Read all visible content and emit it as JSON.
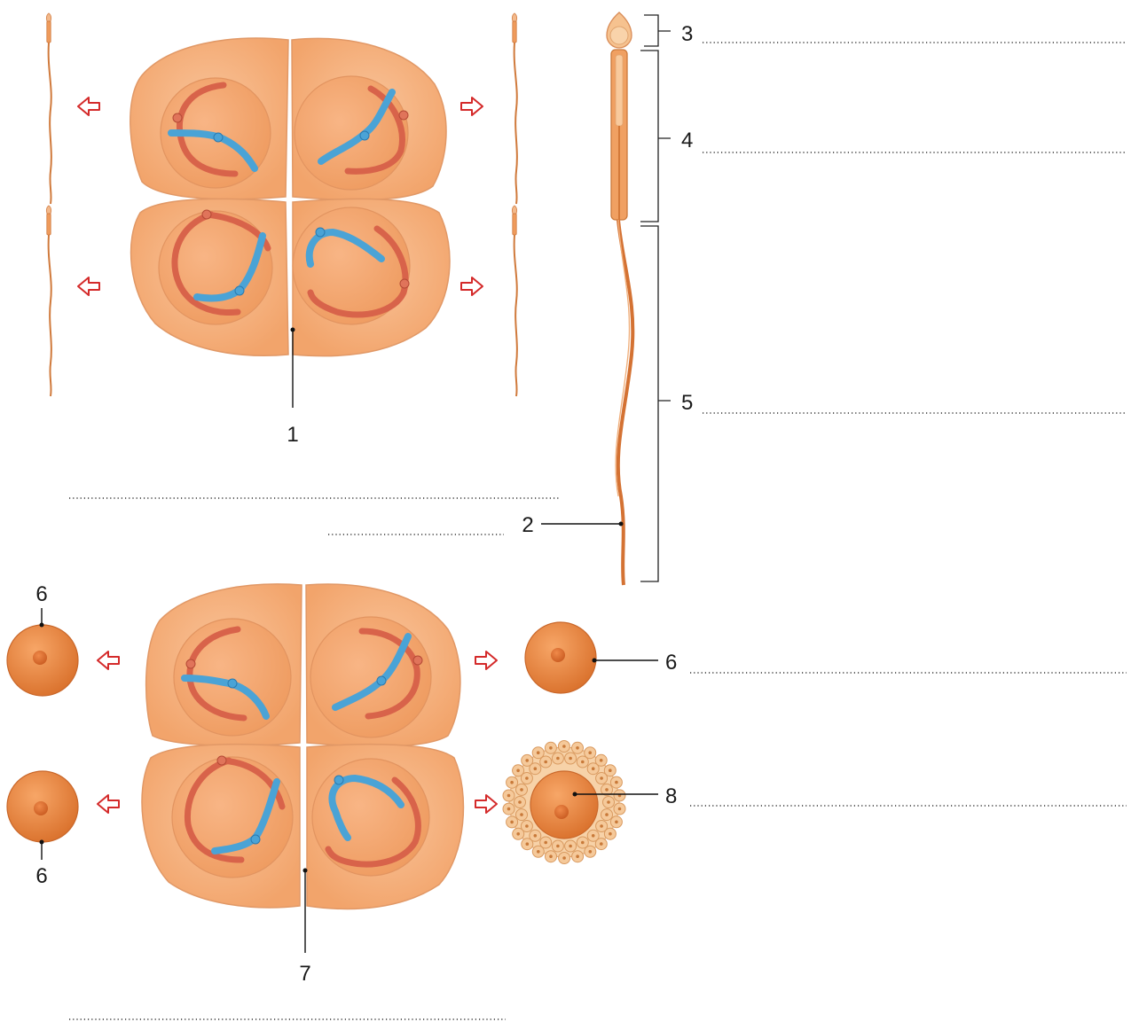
{
  "labels": {
    "l1": "1",
    "l2": "2",
    "l3": "3",
    "l4": "4",
    "l5": "5",
    "l6a": "6",
    "l6b": "6",
    "l6c": "6",
    "l7": "7",
    "l8": "8"
  },
  "colors": {
    "cell": "#f6b27e",
    "cell_edge": "#d98c57",
    "chromosome_paternal": "#4aa3d6",
    "chromosome_maternal": "#d8634a",
    "egg": "#ef8a3d",
    "arrow": "#d42a2a",
    "follicle": "#f5c99a"
  }
}
